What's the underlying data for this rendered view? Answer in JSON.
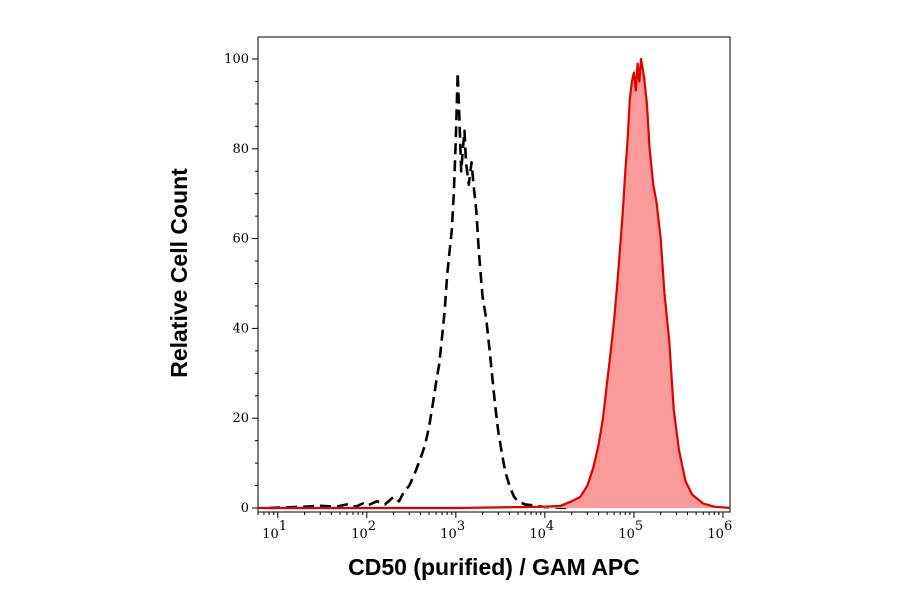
{
  "chart_data": {
    "type": "area",
    "xlabel": "CD50 (purified) / GAM APC",
    "ylabel": "Relative Cell Count",
    "x_scale": "log",
    "xlim": [
      6,
      1200000
    ],
    "ylim": [
      0,
      104
    ],
    "x_ticks": [
      {
        "value": 10,
        "base": "10",
        "exp": "1"
      },
      {
        "value": 100,
        "base": "10",
        "exp": "2"
      },
      {
        "value": 1000,
        "base": "10",
        "exp": "3"
      },
      {
        "value": 10000,
        "base": "10",
        "exp": "4"
      },
      {
        "value": 100000,
        "base": "10",
        "exp": "5"
      },
      {
        "value": 1000000,
        "base": "10",
        "exp": "6"
      }
    ],
    "y_ticks": [
      "0",
      "20",
      "40",
      "60",
      "80",
      "100"
    ],
    "grid": false,
    "legend": "none",
    "series": [
      {
        "style": "dashed",
        "color": "#000000",
        "x": [
          8,
          20,
          30,
          45,
          60,
          75,
          90,
          100,
          130,
          160,
          200,
          230,
          260,
          300,
          350,
          400,
          450,
          500,
          550,
          600,
          650,
          700,
          750,
          800,
          850,
          900,
          950,
          1000,
          1050,
          1100,
          1150,
          1200,
          1250,
          1300,
          1400,
          1500,
          1600,
          1700,
          1800,
          1900,
          2000,
          2200,
          2400,
          2600,
          2800,
          3000,
          3300,
          3600,
          4000,
          4500,
          5000,
          6000,
          8000,
          10000,
          20000
        ],
        "y": [
          0,
          0.3,
          0.5,
          0.3,
          0.8,
          0.3,
          1.0,
          0.5,
          1.5,
          0.8,
          2.5,
          1.5,
          3.5,
          5,
          8,
          11,
          14,
          18,
          23,
          28,
          32,
          38,
          44,
          52,
          57,
          62,
          70,
          82,
          97,
          86,
          75,
          80,
          84,
          77,
          72,
          77,
          71,
          66,
          58,
          52,
          47,
          42,
          35,
          28,
          22,
          17,
          12,
          8,
          5,
          2.5,
          1.5,
          0.8,
          0.5,
          0.2,
          0
        ]
      },
      {
        "style": "filled",
        "color": "#e00000",
        "fill": "#fa9a9a",
        "x": [
          6,
          100,
          1000,
          10000,
          15000,
          20000,
          25000,
          30000,
          35000,
          40000,
          45000,
          50000,
          55000,
          60000,
          65000,
          70000,
          75000,
          80000,
          85000,
          90000,
          95000,
          100000,
          105000,
          110000,
          115000,
          120000,
          130000,
          140000,
          150000,
          165000,
          180000,
          200000,
          220000,
          250000,
          280000,
          320000,
          380000,
          450000,
          600000,
          800000,
          1200000
        ],
        "y": [
          0,
          0,
          0,
          0.3,
          0.5,
          1.5,
          2.5,
          5,
          9,
          14,
          20,
          28,
          35,
          42,
          50,
          58,
          66,
          75,
          82,
          91,
          95,
          97,
          93,
          99,
          95,
          100,
          96,
          90,
          80,
          72,
          68,
          60,
          48,
          37,
          22,
          13,
          6,
          3,
          1,
          0.3,
          0
        ]
      }
    ]
  }
}
